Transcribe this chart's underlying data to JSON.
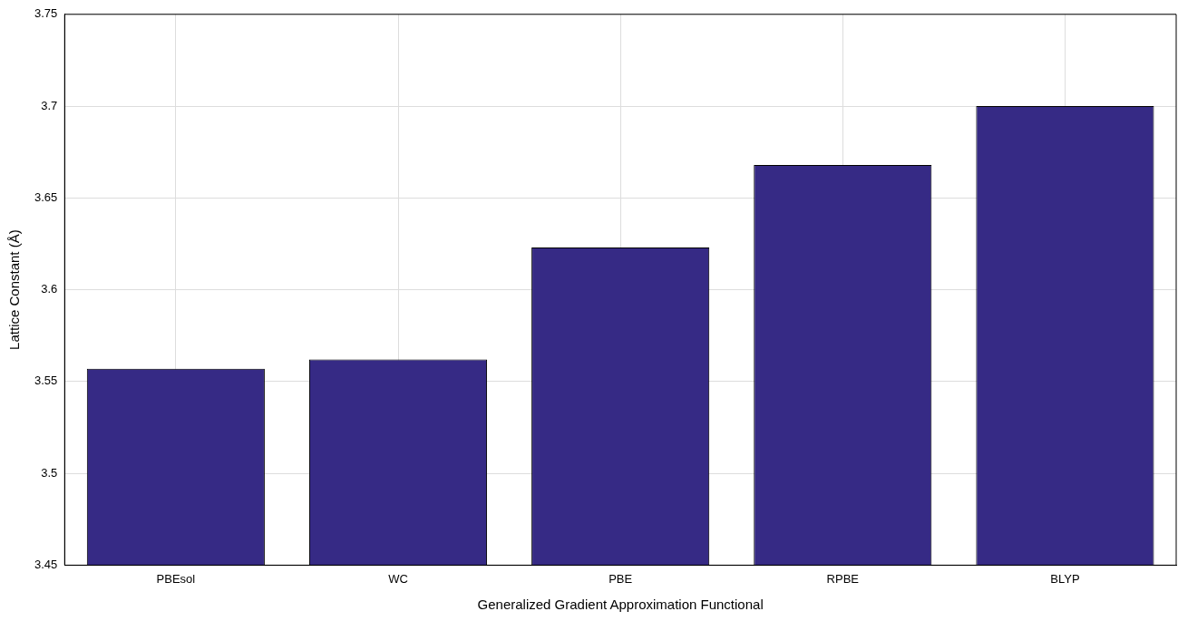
{
  "chart_data": {
    "type": "bar",
    "xlabel": "Generalized Gradient Approximation Functional",
    "ylabel": "Lattice Constant (Å)",
    "categories": [
      "PBEsol",
      "WC",
      "PBE",
      "RPBE",
      "BLYP"
    ],
    "values": [
      3.557,
      3.562,
      3.623,
      3.668,
      3.7
    ],
    "color": "#362a85",
    "ylim": [
      3.45,
      3.75
    ],
    "yticks": [
      3.45,
      3.5,
      3.55,
      3.6,
      3.65,
      3.7,
      3.75
    ],
    "grid": true
  }
}
